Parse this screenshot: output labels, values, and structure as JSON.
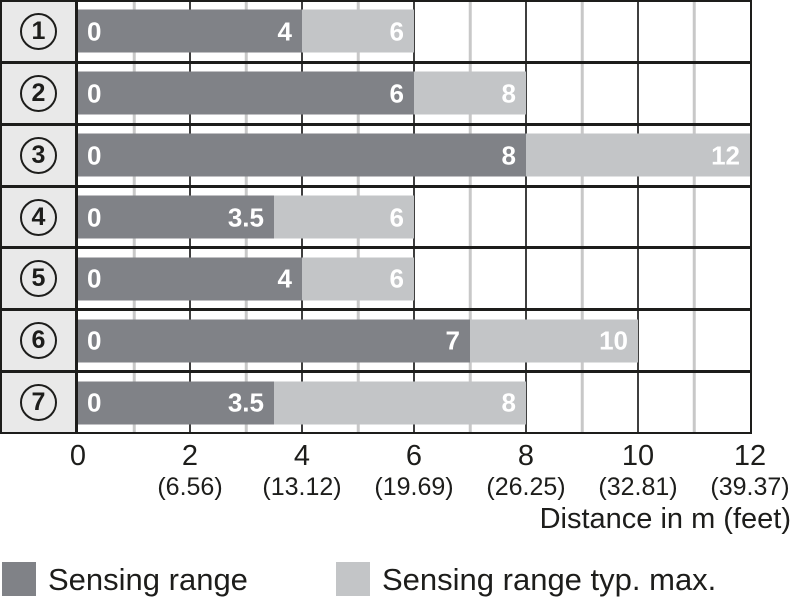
{
  "chart_data": {
    "type": "bar",
    "orientation": "horizontal",
    "title": "",
    "xlabel": "Distance in m (feet)",
    "xlim": [
      0,
      12
    ],
    "grid": true,
    "rows": [
      {
        "num": "1",
        "start": 0,
        "sensing_range": 4,
        "typ_max": 6
      },
      {
        "num": "2",
        "start": 0,
        "sensing_range": 6,
        "typ_max": 8
      },
      {
        "num": "3",
        "start": 0,
        "sensing_range": 8,
        "typ_max": 12
      },
      {
        "num": "4",
        "start": 0,
        "sensing_range": 3.5,
        "typ_max": 6
      },
      {
        "num": "5",
        "start": 0,
        "sensing_range": 4,
        "typ_max": 6
      },
      {
        "num": "6",
        "start": 0,
        "sensing_range": 7,
        "typ_max": 10
      },
      {
        "num": "7",
        "start": 0,
        "sensing_range": 3.5,
        "typ_max": 8
      }
    ],
    "x_axis": {
      "title": "Distance in m (feet)",
      "ticks": [
        {
          "value": 0,
          "m": "0",
          "feet": ""
        },
        {
          "value": 2,
          "m": "2",
          "feet": "(6.56)"
        },
        {
          "value": 4,
          "m": "4",
          "feet": "(13.12)"
        },
        {
          "value": 6,
          "m": "6",
          "feet": "(19.69)"
        },
        {
          "value": 8,
          "m": "8",
          "feet": "(26.25)"
        },
        {
          "value": 10,
          "m": "10",
          "feet": "(32.81)"
        },
        {
          "value": 12,
          "m": "12",
          "feet": "(39.37)"
        }
      ],
      "minor_grid_m": [
        1,
        3,
        5,
        7,
        9,
        11
      ],
      "major_grid_m": [
        2,
        4,
        6,
        8,
        10
      ]
    },
    "legend": [
      {
        "label": "Sensing range",
        "color": "#808287"
      },
      {
        "label": "Sensing range typ. max.",
        "color": "#c3c5c7"
      }
    ],
    "colors": {
      "frame": "#1d1d1b",
      "grid_minor": "#c8c8c8",
      "grid_major": "#3f3f3f",
      "row_label_background": "#e9e9e9",
      "bar_value_text": "#ffffff"
    }
  }
}
